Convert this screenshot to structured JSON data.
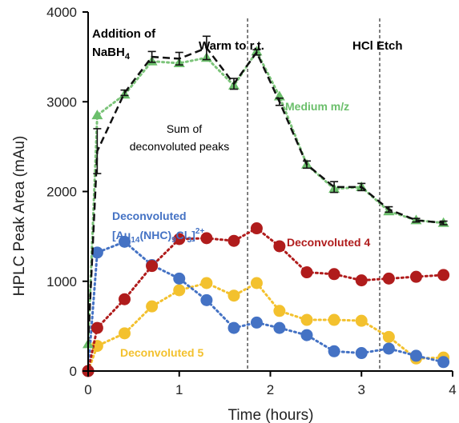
{
  "chart_data": {
    "type": "line",
    "title": "",
    "xlabel": "Time (hours)",
    "ylabel": "HPLC Peak Area (mAu)",
    "xlim": [
      0,
      4
    ],
    "ylim": [
      0,
      4000
    ],
    "x_ticks": [
      "0",
      "1",
      "2",
      "3",
      "4"
    ],
    "y_ticks": [
      "0",
      "1000",
      "2000",
      "3000",
      "4000"
    ],
    "grid": false,
    "legend": "none",
    "colors": {
      "sum": "#111111",
      "medium": "#7cc47a",
      "medium_marker": "#6bbf6b",
      "blue": "#4472c4",
      "red": "#b01c1c",
      "yellow": "#f3c12e"
    },
    "annotations": {
      "addition_line1": "Addition of",
      "addition_line2": "NaBH",
      "addition_sub": "4",
      "warm": "Warm to r.t.",
      "hcl": "HCl Etch",
      "sum_line1": "Sum of",
      "sum_line2": "deconvoluted peaks",
      "medium": "Medium m/z",
      "blue_line1": "Deconvoluted",
      "blue_line2": "[Au",
      "blue_sub1": "14",
      "blue_mid": "(NHC)",
      "blue_sub2": "9",
      "blue_mid2": "Cl",
      "blue_sub3": "3",
      "blue_end": "]",
      "blue_sup": "2+",
      "red": "Deconvoluted 4",
      "yellow": "Deconvoluted 5"
    },
    "vlines_x": [
      0,
      1.75,
      3.2
    ],
    "series": [
      {
        "key": "sum",
        "style": "dashed",
        "x": [
          0,
          0.1,
          0.4,
          0.7,
          1.0,
          1.3,
          1.6,
          1.85,
          2.1,
          2.4,
          2.7,
          3.0,
          3.3,
          3.6,
          3.9
        ],
        "y": [
          300,
          2450,
          3100,
          3500,
          3480,
          3600,
          3200,
          3550,
          3000,
          2300,
          2050,
          2050,
          1800,
          1680,
          1650
        ],
        "err": [
          0,
          250,
          30,
          60,
          70,
          130,
          60,
          30,
          40,
          40,
          60,
          40,
          30,
          20,
          20
        ]
      },
      {
        "key": "medium",
        "style": "dotted",
        "marker": "triangle",
        "x": [
          0,
          0.1,
          0.4,
          0.7,
          1.0,
          1.3,
          1.6,
          1.85,
          2.1,
          2.4,
          2.7,
          3.0,
          3.3,
          3.6,
          3.9
        ],
        "y": [
          300,
          2850,
          3080,
          3450,
          3430,
          3490,
          3180,
          3560,
          3060,
          2300,
          2030,
          2050,
          1780,
          1680,
          1650
        ]
      },
      {
        "key": "blue",
        "style": "dotted",
        "marker": "circle",
        "x": [
          0,
          0.1,
          0.4,
          0.7,
          1.0,
          1.3,
          1.6,
          1.85,
          2.1,
          2.4,
          2.7,
          3.0,
          3.3,
          3.6,
          3.9
        ],
        "y": [
          0,
          1320,
          1440,
          1180,
          1030,
          790,
          480,
          540,
          480,
          400,
          220,
          200,
          250,
          170,
          100
        ]
      },
      {
        "key": "red",
        "style": "dotted",
        "marker": "circle",
        "x": [
          0,
          0.1,
          0.4,
          0.7,
          1.0,
          1.3,
          1.6,
          1.85,
          2.1,
          2.4,
          2.7,
          3.0,
          3.3,
          3.6,
          3.9
        ],
        "y": [
          0,
          480,
          800,
          1170,
          1470,
          1480,
          1450,
          1590,
          1390,
          1100,
          1080,
          1010,
          1030,
          1050,
          1070
        ]
      },
      {
        "key": "yellow",
        "style": "dotted",
        "marker": "circle",
        "x": [
          0,
          0.1,
          0.4,
          0.7,
          1.0,
          1.3,
          1.6,
          1.85,
          2.1,
          2.4,
          2.7,
          3.0,
          3.3,
          3.6,
          3.9
        ],
        "y": [
          0,
          280,
          420,
          720,
          900,
          980,
          840,
          980,
          670,
          570,
          570,
          560,
          380,
          140,
          150
        ]
      }
    ]
  }
}
